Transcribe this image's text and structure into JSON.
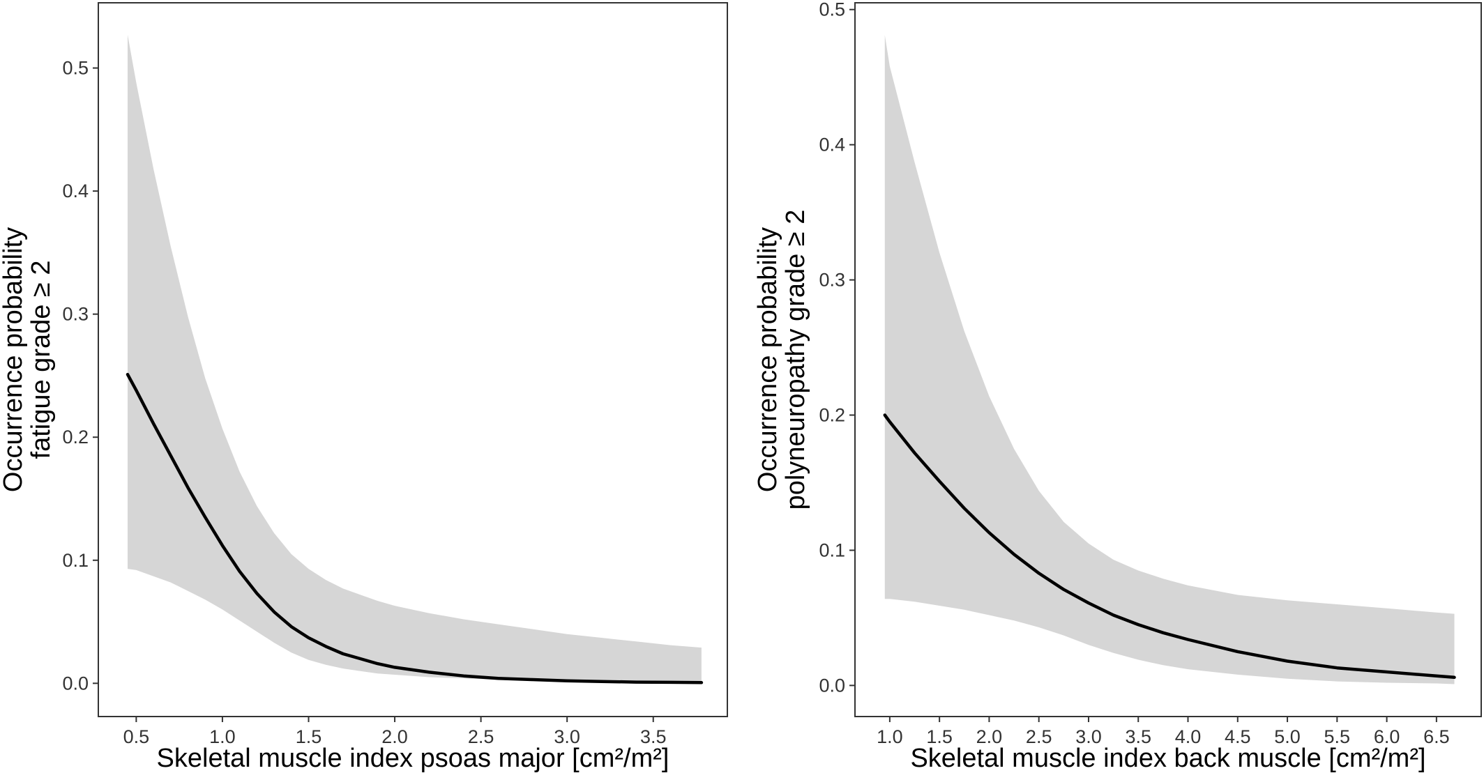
{
  "chart_data": [
    {
      "type": "line",
      "xlabel": "Skeletal muscle index psoas major [cm²/m²]",
      "ylabel": [
        "Occurrence probability",
        "fatigue grade ≥ 2"
      ],
      "xlim": [
        0.28,
        3.93
      ],
      "ylim": [
        -0.027,
        0.553
      ],
      "x_ticks": [
        "0.5",
        "1.0",
        "1.5",
        "2.0",
        "2.5",
        "3.0",
        "3.5"
      ],
      "y_ticks": [
        "0.0",
        "0.1",
        "0.2",
        "0.3",
        "0.4",
        "0.5"
      ],
      "grid": false,
      "band_color": "#d6d6d6",
      "line_color": "#000000",
      "series": [
        {
          "x": [
            0.45,
            0.5,
            0.6,
            0.7,
            0.8,
            0.9,
            1.0,
            1.1,
            1.2,
            1.3,
            1.4,
            1.5,
            1.6,
            1.7,
            1.8,
            1.9,
            2.0,
            2.2,
            2.4,
            2.6,
            2.8,
            3.0,
            3.2,
            3.4,
            3.6,
            3.78
          ],
          "y": [
            0.251,
            0.238,
            0.211,
            0.185,
            0.159,
            0.135,
            0.112,
            0.091,
            0.073,
            0.058,
            0.046,
            0.037,
            0.03,
            0.024,
            0.02,
            0.016,
            0.013,
            0.009,
            0.006,
            0.004,
            0.003,
            0.002,
            0.0015,
            0.001,
            0.0008,
            0.0006
          ],
          "lower": [
            0.093,
            0.092,
            0.087,
            0.082,
            0.075,
            0.068,
            0.06,
            0.051,
            0.042,
            0.033,
            0.025,
            0.019,
            0.015,
            0.012,
            0.01,
            0.008,
            0.007,
            0.005,
            0.004,
            0.003,
            0.002,
            0.0015,
            0.001,
            0.0008,
            0.0006,
            0.0005
          ],
          "upper": [
            0.527,
            0.488,
            0.418,
            0.355,
            0.298,
            0.248,
            0.207,
            0.172,
            0.144,
            0.122,
            0.105,
            0.093,
            0.084,
            0.077,
            0.072,
            0.067,
            0.063,
            0.057,
            0.052,
            0.048,
            0.044,
            0.04,
            0.037,
            0.034,
            0.031,
            0.029
          ]
        }
      ]
    },
    {
      "type": "line",
      "xlabel": "Skeletal muscle index back muscle [cm²/m²]",
      "ylabel": [
        "Occurrence probability",
        "polyneuropathy grade ≥ 2"
      ],
      "xlim": [
        0.65,
        6.95
      ],
      "ylim": [
        -0.023,
        0.505
      ],
      "x_ticks": [
        "1.0",
        "1.5",
        "2.0",
        "2.5",
        "3.0",
        "3.5",
        "4.0",
        "4.5",
        "5.0",
        "5.5",
        "6.0",
        "6.5"
      ],
      "y_ticks": [
        "0.0",
        "0.1",
        "0.2",
        "0.3",
        "0.4",
        "0.5"
      ],
      "grid": false,
      "band_color": "#d6d6d6",
      "line_color": "#000000",
      "series": [
        {
          "x": [
            0.95,
            1.0,
            1.25,
            1.5,
            1.75,
            2.0,
            2.25,
            2.5,
            2.75,
            3.0,
            3.25,
            3.5,
            3.75,
            4.0,
            4.5,
            5.0,
            5.5,
            6.0,
            6.5,
            6.68
          ],
          "y": [
            0.2,
            0.195,
            0.172,
            0.151,
            0.131,
            0.113,
            0.097,
            0.083,
            0.071,
            0.061,
            0.052,
            0.045,
            0.039,
            0.034,
            0.025,
            0.018,
            0.013,
            0.01,
            0.007,
            0.006
          ],
          "lower": [
            0.064,
            0.064,
            0.062,
            0.059,
            0.056,
            0.052,
            0.048,
            0.043,
            0.037,
            0.03,
            0.024,
            0.019,
            0.015,
            0.012,
            0.008,
            0.005,
            0.003,
            0.002,
            0.0015,
            0.001
          ],
          "upper": [
            0.481,
            0.458,
            0.387,
            0.32,
            0.262,
            0.214,
            0.175,
            0.144,
            0.121,
            0.105,
            0.093,
            0.085,
            0.079,
            0.074,
            0.067,
            0.063,
            0.06,
            0.057,
            0.054,
            0.053
          ]
        }
      ]
    }
  ]
}
